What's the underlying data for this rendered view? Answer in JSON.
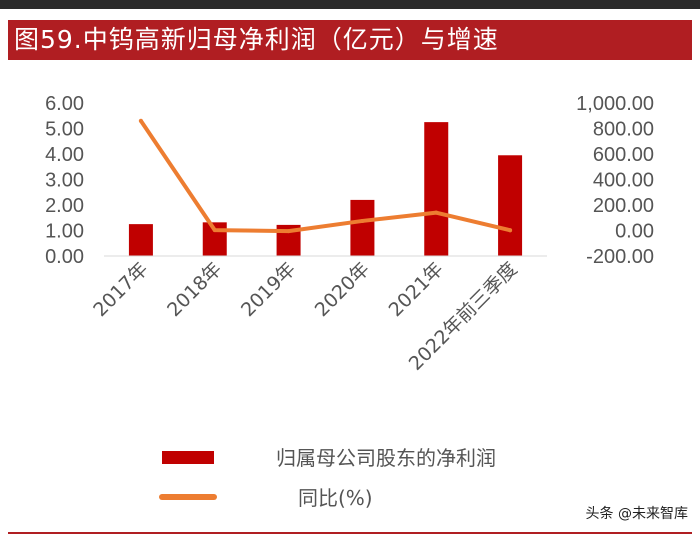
{
  "title": "图59.中钨高新归母净利润（亿元）与增速",
  "watermark": "头条 @未来智库",
  "colors": {
    "bar": "#c00000",
    "line": "#ed7d31",
    "title_bg": "#b01e22"
  },
  "chart_data": {
    "type": "bar+line",
    "categories": [
      "2017年",
      "2018年",
      "2019年",
      "2020年",
      "2021年",
      "2022年前三季度"
    ],
    "series": [
      {
        "name": "归属母公司股东的净利润",
        "type": "bar",
        "axis": "left",
        "values": [
          1.25,
          1.32,
          1.22,
          2.2,
          5.25,
          3.95
        ]
      },
      {
        "name": "同比(%)",
        "type": "line",
        "axis": "right",
        "values": [
          860,
          3,
          -5,
          75,
          140,
          2
        ]
      }
    ],
    "y_left": {
      "ticks": [
        "6.00",
        "5.00",
        "4.00",
        "3.00",
        "2.00",
        "1.00",
        "0.00"
      ],
      "ylim": [
        0,
        6
      ]
    },
    "y_right": {
      "ticks": [
        "1,000.00",
        "800.00",
        "600.00",
        "400.00",
        "200.00",
        "0.00",
        "-200.00"
      ],
      "ylim": [
        -200,
        1000
      ]
    },
    "legend_position": "bottom",
    "grid": false
  }
}
